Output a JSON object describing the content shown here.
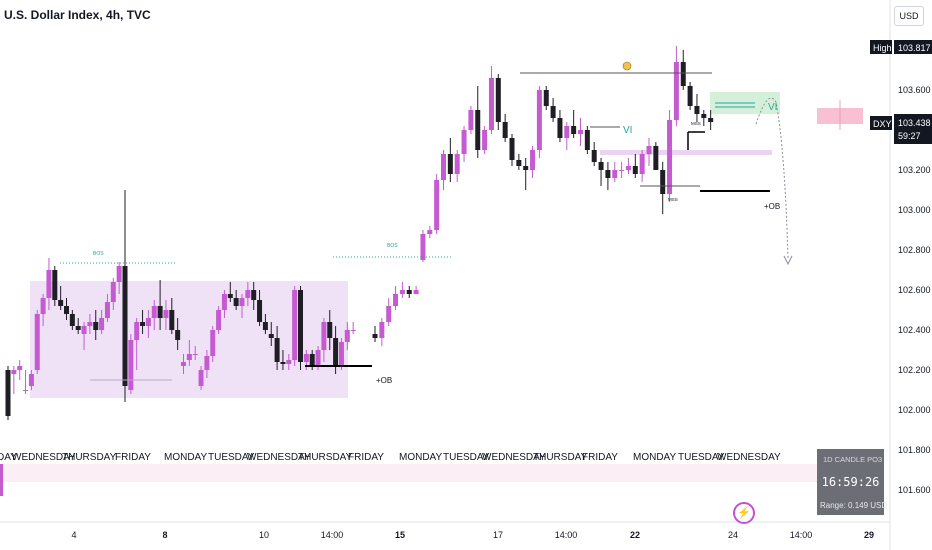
{
  "header": {
    "title": "U.S. Dollar Index, 4h, TVC",
    "currency_button": "USD"
  },
  "colors": {
    "bull": "#c45bd1",
    "bear": "#1e1e24",
    "zone": "#efe2f7",
    "fvg": "#c9ecd1",
    "ob_line": "#000000"
  },
  "price_tags": {
    "high_label": "High",
    "high_value": "103.817",
    "symbol": "DXY",
    "last_value": "103.438",
    "countdown": "59:27"
  },
  "annotations": {
    "bos_1": "BOS",
    "bos_2": "BOS",
    "vi_1": "VI",
    "vi_2": "VI",
    "ob_1": "+OB",
    "ob_2": "+OB",
    "mss_1": "MSS",
    "mss_2": "MSS"
  },
  "countdown_widget": {
    "title": "1D CANDLE PO3",
    "time": "16:59:26",
    "range": "Range: 0.149 USD"
  },
  "chart_data": {
    "type": "candlestick",
    "title": "U.S. Dollar Index, 4h, TVC",
    "ylim": [
      101.5,
      104.1
    ],
    "y_ticks": [
      "103.800",
      "103.600",
      "103.400",
      "103.200",
      "103.000",
      "102.800",
      "102.600",
      "102.400",
      "102.200",
      "102.000",
      "101.800",
      "101.600"
    ],
    "x_ticks": [
      "4",
      "8",
      "10",
      "14:00",
      "15",
      "17",
      "14:00",
      "22",
      "24",
      "14:00",
      "29"
    ],
    "day_labels": [
      "DAY",
      "WEDNESDAY",
      "THURSDAY",
      "FRIDAY",
      "MONDAY",
      "TUESDAY",
      "WEDNESDAY",
      "THURSDAY",
      "FRIDAY",
      "MONDAY",
      "TUESDAY",
      "WEDNESDAY",
      "THURSDAY",
      "FRIDAY",
      "MONDAY",
      "TUESDAY",
      "WEDNESDAY"
    ],
    "candles_1": [
      [
        102.2,
        102.22,
        101.95,
        101.97
      ],
      [
        102.18,
        102.22,
        102.08,
        102.2
      ],
      [
        102.2,
        102.25,
        102.15,
        102.22
      ],
      [
        102.1,
        102.2,
        102.08,
        102.1
      ],
      [
        102.12,
        102.2,
        102.1,
        102.18
      ],
      [
        102.2,
        102.5,
        102.18,
        102.48
      ],
      [
        102.48,
        102.58,
        102.42,
        102.56
      ],
      [
        102.56,
        102.76,
        102.5,
        102.7
      ],
      [
        102.7,
        102.72,
        102.52,
        102.55
      ],
      [
        102.55,
        102.62,
        102.5,
        102.52
      ],
      [
        102.52,
        102.56,
        102.45,
        102.48
      ],
      [
        102.48,
        102.5,
        102.4,
        102.42
      ],
      [
        102.42,
        102.46,
        102.38,
        102.4
      ],
      [
        102.38,
        102.44,
        102.3,
        102.42
      ],
      [
        102.42,
        102.48,
        102.38,
        102.44
      ],
      [
        102.44,
        102.5,
        102.35,
        102.4
      ],
      [
        102.4,
        102.5,
        102.38,
        102.46
      ],
      [
        102.46,
        102.58,
        102.44,
        102.54
      ],
      [
        102.54,
        102.66,
        102.5,
        102.64
      ],
      [
        102.64,
        102.74,
        102.58,
        102.72
      ],
      [
        102.72,
        103.1,
        102.04,
        102.12
      ],
      [
        102.1,
        102.38,
        102.08,
        102.35
      ],
      [
        102.35,
        102.46,
        102.2,
        102.44
      ],
      [
        102.44,
        102.5,
        102.38,
        102.42
      ],
      [
        102.42,
        102.5,
        102.36,
        102.46
      ],
      [
        102.46,
        102.55,
        102.4,
        102.52
      ],
      [
        102.52,
        102.65,
        102.4,
        102.46
      ],
      [
        102.46,
        102.55,
        102.4,
        102.5
      ],
      [
        102.5,
        102.56,
        102.38,
        102.4
      ],
      [
        102.4,
        102.46,
        102.3,
        102.35
      ],
      [
        102.22,
        102.28,
        102.18,
        102.24
      ],
      [
        102.25,
        102.35,
        102.22,
        102.28
      ],
      [
        102.28,
        102.32,
        102.25,
        102.28
      ],
      [
        102.12,
        102.22,
        102.1,
        102.2
      ],
      [
        102.2,
        102.3,
        102.16,
        102.27
      ],
      [
        102.27,
        102.42,
        102.24,
        102.4
      ],
      [
        102.4,
        102.52,
        102.38,
        102.5
      ],
      [
        102.5,
        102.6,
        102.46,
        102.58
      ],
      [
        102.58,
        102.64,
        102.54,
        102.56
      ],
      [
        102.56,
        102.6,
        102.5,
        102.52
      ],
      [
        102.52,
        102.58,
        102.46,
        102.56
      ],
      [
        102.56,
        102.64,
        102.52,
        102.6
      ],
      [
        102.6,
        102.64,
        102.5,
        102.55
      ],
      [
        102.55,
        102.6,
        102.42,
        102.44
      ],
      [
        102.44,
        102.48,
        102.38,
        102.4
      ],
      [
        102.38,
        102.44,
        102.32,
        102.36
      ],
      [
        102.36,
        102.42,
        102.2,
        102.24
      ],
      [
        102.24,
        102.3,
        102.2,
        102.23
      ],
      [
        102.23,
        102.28,
        102.2,
        102.25
      ],
      [
        102.25,
        102.62,
        102.22,
        102.6
      ],
      [
        102.6,
        102.62,
        102.2,
        102.24
      ],
      [
        102.24,
        102.3,
        102.2,
        102.28
      ],
      [
        102.28,
        102.3,
        102.2,
        102.22
      ],
      [
        102.22,
        102.32,
        102.2,
        102.3
      ],
      [
        102.3,
        102.46,
        102.24,
        102.44
      ],
      [
        102.44,
        102.5,
        102.3,
        102.36
      ],
      [
        102.36,
        102.42,
        102.18,
        102.22
      ],
      [
        102.22,
        102.36,
        102.2,
        102.34
      ],
      [
        102.34,
        102.44,
        102.3,
        102.4
      ],
      [
        102.4,
        102.44,
        102.38,
        102.4
      ]
    ],
    "candles_2": [
      [
        102.38,
        102.42,
        102.34,
        102.36
      ],
      [
        102.36,
        102.46,
        102.32,
        102.44
      ],
      [
        102.44,
        102.56,
        102.42,
        102.52
      ],
      [
        102.52,
        102.62,
        102.5,
        102.58
      ],
      [
        102.58,
        102.64,
        102.56,
        102.6
      ],
      [
        102.6,
        102.62,
        102.56,
        102.58
      ],
      [
        102.58,
        102.62,
        102.58,
        102.6
      ],
      [
        102.75,
        102.9,
        102.74,
        102.88
      ],
      [
        102.88,
        102.92,
        102.86,
        102.9
      ],
      [
        102.9,
        103.18,
        102.88,
        103.15
      ],
      [
        103.15,
        103.3,
        103.1,
        103.28
      ],
      [
        103.28,
        103.36,
        103.14,
        103.18
      ],
      [
        103.18,
        103.3,
        103.14,
        103.28
      ],
      [
        103.28,
        103.42,
        103.24,
        103.4
      ],
      [
        103.4,
        103.52,
        103.38,
        103.5
      ],
      [
        103.5,
        103.62,
        103.26,
        103.3
      ],
      [
        103.3,
        103.42,
        103.28,
        103.4
      ],
      [
        103.4,
        103.72,
        103.38,
        103.66
      ],
      [
        103.66,
        103.68,
        103.4,
        103.44
      ],
      [
        103.44,
        103.48,
        103.34,
        103.36
      ],
      [
        103.36,
        103.38,
        103.22,
        103.25
      ],
      [
        103.25,
        103.28,
        103.2,
        103.22
      ],
      [
        103.22,
        103.26,
        103.1,
        103.2
      ],
      [
        103.2,
        103.32,
        103.16,
        103.3
      ],
      [
        103.3,
        103.62,
        103.26,
        103.6
      ],
      [
        103.6,
        103.62,
        103.5,
        103.52
      ],
      [
        103.52,
        103.56,
        103.44,
        103.46
      ],
      [
        103.46,
        103.5,
        103.34,
        103.36
      ],
      [
        103.36,
        103.44,
        103.3,
        103.42
      ],
      [
        103.42,
        103.5,
        103.36,
        103.38
      ],
      [
        103.38,
        103.46,
        103.32,
        103.4
      ],
      [
        103.4,
        103.42,
        103.28,
        103.3
      ],
      [
        103.3,
        103.34,
        103.22,
        103.24
      ],
      [
        103.24,
        103.26,
        103.12,
        103.2
      ],
      [
        103.2,
        103.24,
        103.1,
        103.16
      ],
      [
        103.16,
        103.24,
        103.14,
        103.2
      ],
      [
        103.2,
        103.24,
        103.16,
        103.2
      ],
      [
        103.2,
        103.26,
        103.18,
        103.22
      ],
      [
        103.22,
        103.28,
        103.16,
        103.18
      ],
      [
        103.18,
        103.3,
        103.14,
        103.28
      ],
      [
        103.28,
        103.36,
        103.22,
        103.32
      ],
      [
        103.32,
        103.34,
        103.2,
        103.2
      ],
      [
        103.2,
        103.24,
        102.98,
        103.08
      ],
      [
        103.08,
        103.5,
        103.04,
        103.45
      ],
      [
        103.45,
        103.82,
        103.42,
        103.74
      ],
      [
        103.74,
        103.8,
        103.6,
        103.62
      ],
      [
        103.62,
        103.64,
        103.5,
        103.52
      ],
      [
        103.52,
        103.58,
        103.44,
        103.48
      ],
      [
        103.48,
        103.5,
        103.42,
        103.46
      ],
      [
        103.46,
        103.5,
        103.4,
        103.44
      ]
    ]
  }
}
